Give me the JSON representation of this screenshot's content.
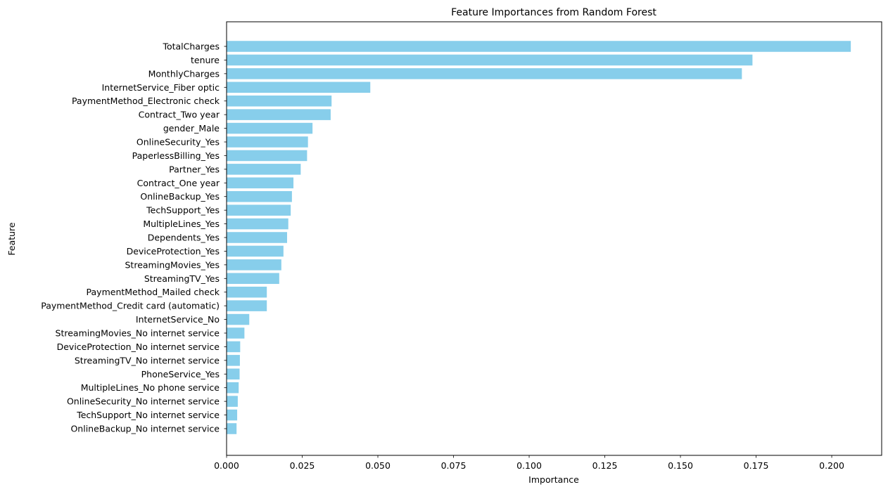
{
  "chart_data": {
    "type": "bar",
    "orientation": "horizontal",
    "title": "Feature Importances from Random Forest",
    "xlabel": "Importance",
    "ylabel": "Feature",
    "xlim": [
      0,
      0.2165
    ],
    "xticks": [
      "0.000",
      "0.025",
      "0.050",
      "0.075",
      "0.100",
      "0.125",
      "0.150",
      "0.175",
      "0.200"
    ],
    "grid": false,
    "bar_color": "#87CEEB",
    "categories": [
      "TotalCharges",
      "tenure",
      "MonthlyCharges",
      "InternetService_Fiber optic",
      "PaymentMethod_Electronic check",
      "Contract_Two year",
      "gender_Male",
      "OnlineSecurity_Yes",
      "PaperlessBilling_Yes",
      "Partner_Yes",
      "Contract_One year",
      "OnlineBackup_Yes",
      "TechSupport_Yes",
      "MultipleLines_Yes",
      "Dependents_Yes",
      "DeviceProtection_Yes",
      "StreamingMovies_Yes",
      "StreamingTV_Yes",
      "PaymentMethod_Mailed check",
      "PaymentMethod_Credit card (automatic)",
      "InternetService_No",
      "StreamingMovies_No internet service",
      "DeviceProtection_No internet service",
      "StreamingTV_No internet service",
      "PhoneService_Yes",
      "MultipleLines_No phone service",
      "OnlineSecurity_No internet service",
      "TechSupport_No internet service",
      "OnlineBackup_No internet service"
    ],
    "values": [
      0.2063,
      0.1738,
      0.1703,
      0.0475,
      0.0347,
      0.0344,
      0.0284,
      0.0269,
      0.0266,
      0.0245,
      0.0221,
      0.0216,
      0.0212,
      0.0204,
      0.02,
      0.0188,
      0.0181,
      0.0174,
      0.0133,
      0.0133,
      0.0075,
      0.0059,
      0.0045,
      0.0044,
      0.0043,
      0.004,
      0.0037,
      0.0035,
      0.0033
    ]
  }
}
